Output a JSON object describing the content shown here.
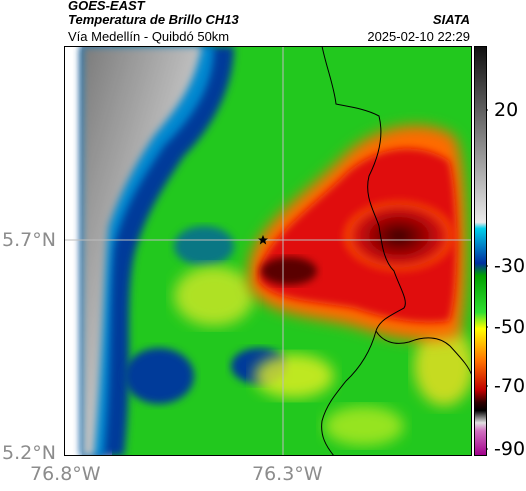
{
  "header": {
    "satellite": "GOES-EAST",
    "product": "Temperatura de Brillo CH13",
    "region": "Vía Medellín - Quibdó 50km",
    "org": "SIATA",
    "datetime": "2025-02-10 22:29"
  },
  "axes": {
    "lat_labels": [
      "5.7°N",
      "5.2°N"
    ],
    "lon_labels": [
      "76.8°W",
      "76.3°W"
    ]
  },
  "colorbar": {
    "ticks": [
      "20",
      "-30",
      "-50",
      "-70",
      "-90"
    ],
    "colors": [
      "#1a1a1a",
      "#e6e6e6",
      "#00c8e6",
      "#00288c",
      "#00dc00",
      "#ffff00",
      "#ff6400",
      "#8c0000",
      "#000000",
      "#ffffff",
      "#c8009a"
    ]
  },
  "map": {
    "marker_icon": "star-icon",
    "colors": {
      "cold_cloud": "#c00000",
      "mid_cloud": "#1ec81e",
      "warm_cloud": "#0050aa",
      "clear_land": "#d0d0d0",
      "border": "#000000"
    }
  }
}
